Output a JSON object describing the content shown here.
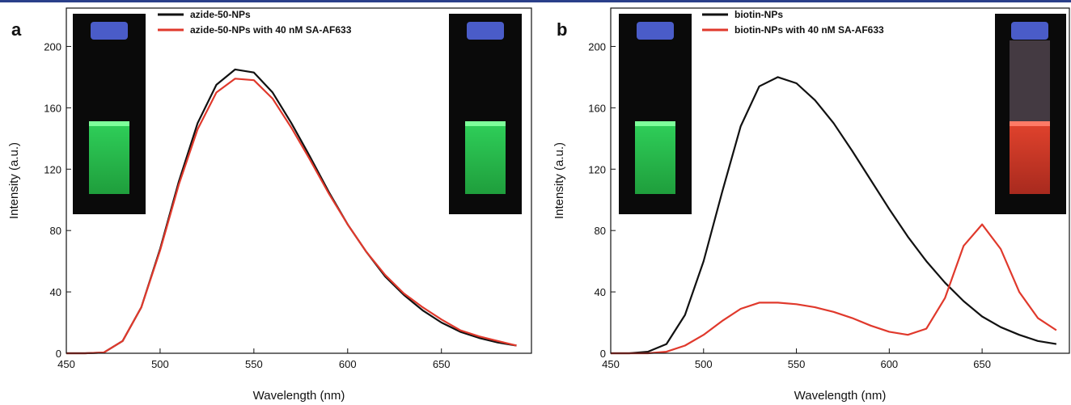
{
  "chart_data": [
    {
      "type": "line",
      "panel": "a",
      "xlabel": "Wavelength (nm)",
      "ylabel": "Intensity (a.u.)",
      "xlim": [
        450,
        698
      ],
      "ylim": [
        0,
        225
      ],
      "xticks": [
        450,
        500,
        550,
        600,
        650
      ],
      "yticks": [
        0,
        40,
        80,
        120,
        160,
        200
      ],
      "x": [
        450,
        460,
        470,
        480,
        490,
        500,
        510,
        520,
        530,
        540,
        550,
        560,
        570,
        580,
        590,
        600,
        610,
        620,
        630,
        640,
        650,
        660,
        670,
        680,
        690
      ],
      "series": [
        {
          "name": "azide-50-NPs",
          "color": "#111111",
          "values": [
            0,
            0,
            0.5,
            8,
            30,
            68,
            112,
            150,
            175,
            185,
            183,
            170,
            150,
            128,
            105,
            84,
            66,
            50,
            38,
            28,
            20,
            14,
            10,
            7,
            5
          ]
        },
        {
          "name": "azide-50-NPs with 40 nM SA-AF633",
          "color": "#e0392c",
          "values": [
            0,
            0,
            0.5,
            8,
            30,
            67,
            110,
            146,
            170,
            179,
            178,
            166,
            147,
            126,
            104,
            84,
            66,
            51,
            39,
            30,
            22,
            15,
            11,
            8,
            5
          ]
        }
      ]
    },
    {
      "type": "line",
      "panel": "b",
      "xlabel": "Wavelength (nm)",
      "ylabel": "Intensity (a.u.)",
      "xlim": [
        450,
        697
      ],
      "ylim": [
        0,
        225
      ],
      "xticks": [
        450,
        500,
        550,
        600,
        650
      ],
      "yticks": [
        0,
        40,
        80,
        120,
        160,
        200
      ],
      "x": [
        450,
        460,
        470,
        480,
        490,
        500,
        510,
        520,
        530,
        540,
        550,
        560,
        570,
        580,
        590,
        600,
        610,
        620,
        630,
        640,
        650,
        660,
        670,
        680,
        690
      ],
      "series": [
        {
          "name": "biotin-NPs",
          "color": "#111111",
          "values": [
            0,
            0,
            1,
            6,
            25,
            60,
            105,
            148,
            174,
            180,
            176,
            165,
            150,
            132,
            113,
            94,
            76,
            60,
            46,
            34,
            24,
            17,
            12,
            8,
            6
          ]
        },
        {
          "name": "biotin-NPs with 40 nM SA-AF633",
          "color": "#e0392c",
          "values": [
            0,
            0,
            0,
            1,
            5,
            12,
            21,
            29,
            33,
            33,
            32,
            30,
            27,
            23,
            18,
            14,
            12,
            16,
            36,
            70,
            84,
            68,
            40,
            23,
            15
          ]
        }
      ]
    }
  ]
}
